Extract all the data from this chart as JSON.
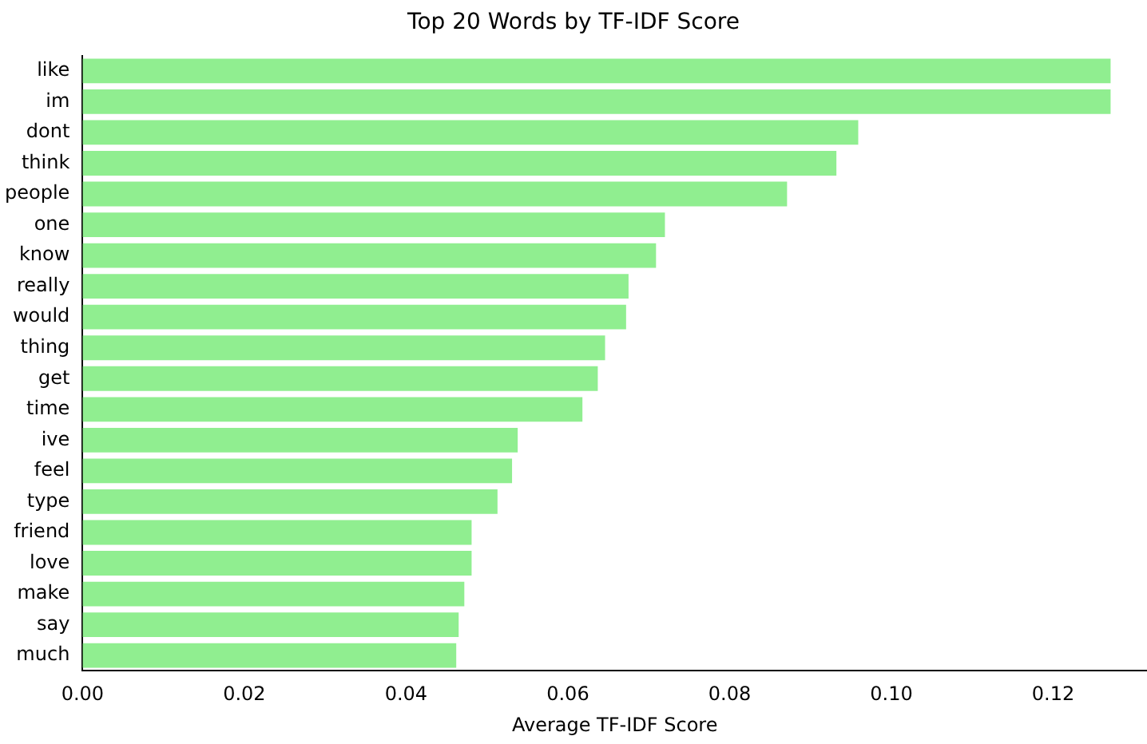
{
  "chart_data": {
    "type": "bar",
    "orientation": "horizontal",
    "title": "Top 20 Words by TF-IDF Score",
    "xlabel": "Average TF-IDF Score",
    "categories": [
      "like",
      "im",
      "dont",
      "think",
      "people",
      "one",
      "know",
      "really",
      "would",
      "thing",
      "get",
      "time",
      "ive",
      "feel",
      "type",
      "friend",
      "love",
      "make",
      "say",
      "much"
    ],
    "values": [
      0.1271,
      0.1271,
      0.0959,
      0.0932,
      0.0871,
      0.072,
      0.0709,
      0.0675,
      0.0672,
      0.0646,
      0.0637,
      0.0618,
      0.0538,
      0.0531,
      0.0513,
      0.0481,
      0.0481,
      0.0472,
      0.0465,
      0.0462
    ],
    "color": "#90ee90",
    "xlim": [
      0,
      0.1316
    ],
    "xticks": [
      {
        "value": 0,
        "label": "0.00"
      },
      {
        "value": 0.02,
        "label": "0.02"
      },
      {
        "value": 0.04,
        "label": "0.04"
      },
      {
        "value": 0.06,
        "label": "0.06"
      },
      {
        "value": 0.08,
        "label": "0.08"
      },
      {
        "value": 0.1,
        "label": "0.10"
      },
      {
        "value": 0.12,
        "label": "0.12"
      }
    ],
    "grid": false,
    "legend": false
  }
}
